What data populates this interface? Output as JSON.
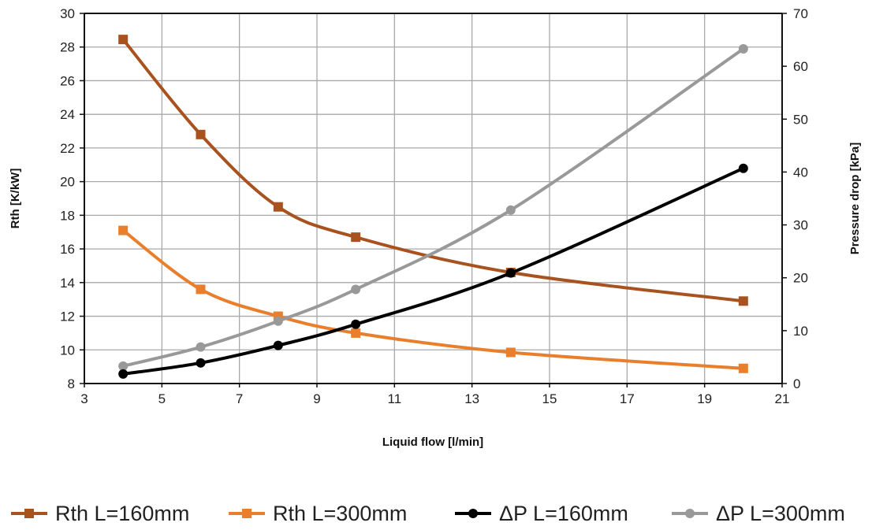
{
  "chart_data": {
    "type": "line",
    "title": "",
    "xlabel": "Liquid flow [l/min]",
    "ylabel": "Rth [K/kW]",
    "y2label": "Pressure drop [kPa]",
    "xlim": [
      3,
      21
    ],
    "ylim": [
      8,
      30
    ],
    "y2lim": [
      0,
      70
    ],
    "xticks": [
      3,
      5,
      7,
      9,
      11,
      13,
      15,
      17,
      19,
      21
    ],
    "yticks": [
      8,
      10,
      12,
      14,
      16,
      18,
      20,
      22,
      24,
      26,
      28,
      30
    ],
    "y2ticks": [
      0,
      10,
      20,
      30,
      40,
      50,
      60,
      70
    ],
    "grid": true,
    "legend_position": "bottom",
    "series": [
      {
        "name": "Rth L=160mm",
        "axis": "left",
        "marker": "square",
        "color": "#A8521F",
        "x": [
          4,
          6,
          8,
          10,
          14,
          20
        ],
        "y": [
          28.45,
          22.8,
          18.5,
          16.7,
          14.6,
          12.9
        ]
      },
      {
        "name": "Rth L=300mm",
        "axis": "left",
        "marker": "square",
        "color": "#E97E2C",
        "x": [
          4,
          6,
          8,
          10,
          14,
          20
        ],
        "y": [
          17.1,
          13.6,
          12.0,
          11.0,
          9.85,
          8.9
        ]
      },
      {
        "name": "ΔP L=160mm",
        "axis": "right",
        "marker": "circle",
        "color": "#000000",
        "x": [
          4,
          6,
          8,
          10,
          14,
          20
        ],
        "y": [
          1.8,
          3.9,
          7.2,
          11.2,
          20.9,
          40.7
        ]
      },
      {
        "name": "ΔP L=300mm",
        "axis": "right",
        "marker": "circle",
        "color": "#999999",
        "x": [
          4,
          6,
          8,
          10,
          14,
          20
        ],
        "y": [
          3.3,
          6.9,
          11.8,
          17.8,
          32.8,
          63.3
        ]
      }
    ]
  }
}
